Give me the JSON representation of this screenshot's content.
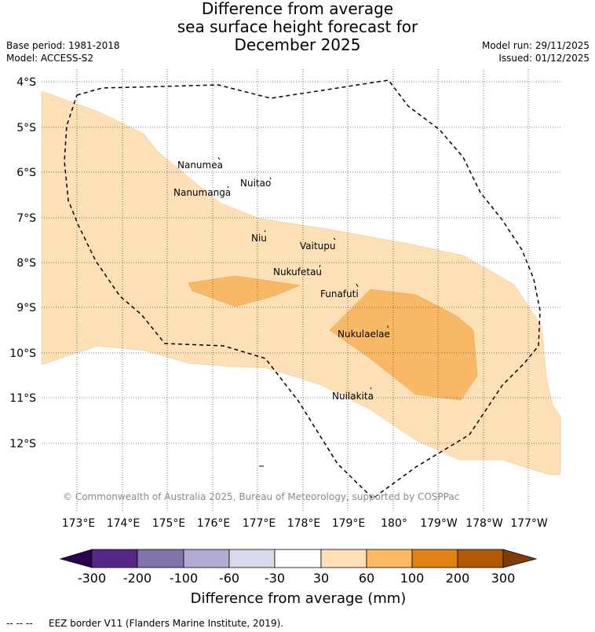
{
  "title": {
    "line1": "Difference from average",
    "line2": "sea surface height forecast for",
    "line3": "December 2025"
  },
  "header": {
    "base_period": "Base period: 1981-2018",
    "model": "Model: ACCESS-S2",
    "model_run": "Model run: 29/11/2025",
    "issued": "Issued: 01/12/2025"
  },
  "map": {
    "lat_labels": [
      "4°S",
      "5°S",
      "6°S",
      "7°S",
      "8°S",
      "9°S",
      "10°S",
      "11°S",
      "12°S"
    ],
    "lon_labels": [
      "173°E",
      "174°E",
      "175°E",
      "176°E",
      "177°E",
      "178°E",
      "179°E",
      "180°",
      "179°W",
      "178°W",
      "177°W"
    ],
    "islands": [
      "Nanumea",
      "Nuitao",
      "Nanumanga",
      "Niu",
      "Vaitupu",
      "Nukufetau",
      "Funafuti",
      "Nukulaelae",
      "Nuilakita"
    ],
    "copyright": "© Commonwealth of Australia 2025, Bureau of Meteorology, supported by COSPPac",
    "colors": {
      "band_30_60": "#fde0b5",
      "band_60_100": "#f9b865",
      "eez": "#000000"
    }
  },
  "colorbar": {
    "ticks": [
      "-300",
      "-200",
      "-100",
      "-60",
      "-30",
      "30",
      "60",
      "100",
      "200",
      "300"
    ],
    "colors": [
      "#2d004b",
      "#542788",
      "#8073ac",
      "#b2abd2",
      "#d8daeb",
      "#ffffff",
      "#fee0b6",
      "#fdb863",
      "#e08214",
      "#b35806",
      "#7f3b08"
    ],
    "label": "Difference from average (mm)"
  },
  "legend": {
    "eez_marker": "-- -- --",
    "eez": "EEZ border V11 (Flanders Marine Institute, 2019)."
  }
}
